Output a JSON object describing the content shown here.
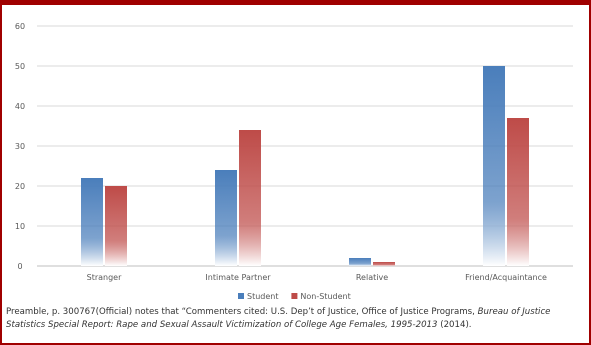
{
  "chart_data": {
    "type": "bar",
    "categories": [
      "Stranger",
      "Intimate Partner",
      "Relative",
      "Friend/Acquaintance"
    ],
    "series": [
      {
        "name": "Student",
        "values": [
          22,
          24,
          2,
          50
        ],
        "color": "#4a7ebb"
      },
      {
        "name": "Non-Student",
        "values": [
          20,
          34,
          1,
          37
        ],
        "color": "#be4b48"
      }
    ],
    "ylim": [
      0,
      60
    ],
    "yticks": [
      0,
      10,
      20,
      30,
      40,
      50,
      60
    ],
    "grid": true,
    "legend_position": "bottom"
  },
  "caption": {
    "text_1": "Preamble, p. 300767(Official) notes that “Commenters cited: U.S. Dep’t of Justice, Office of Justice Programs, ",
    "italic_1": "Bureau of Justice Statistics Special Report: Rape and Sexual Assault Victimization of College Age Females, 1995-2013",
    "text_2": " (2014)."
  }
}
